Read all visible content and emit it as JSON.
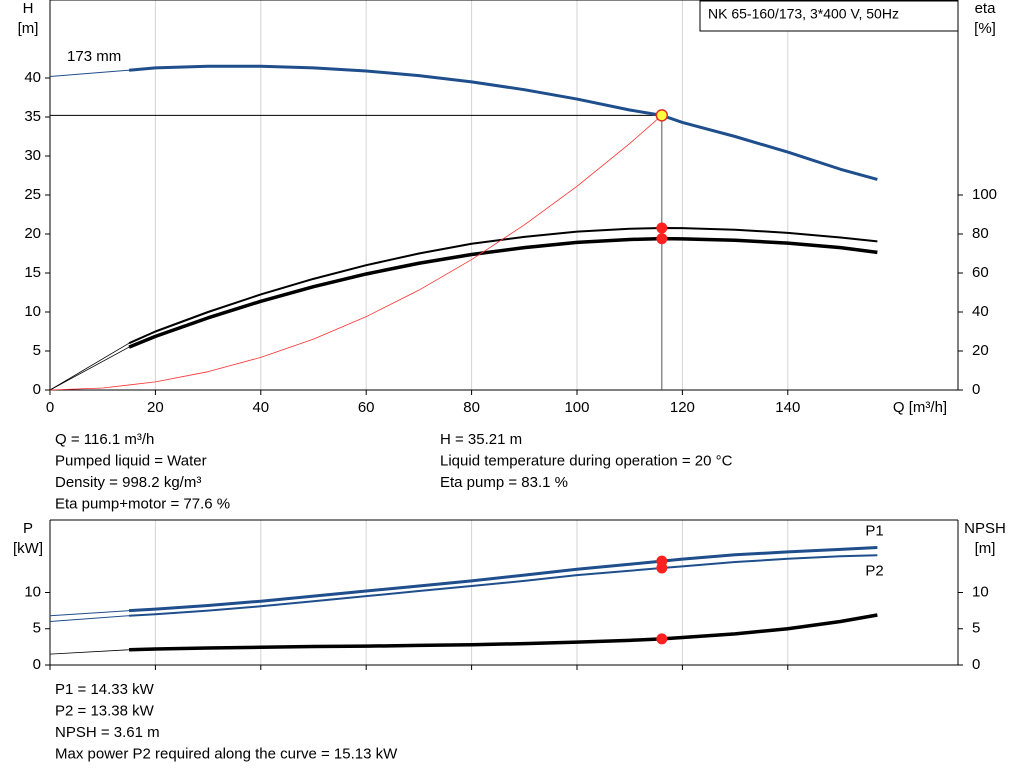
{
  "chart_data": [
    {
      "type": "line",
      "title": "NK 65-160/173, 3*400 V, 50Hz",
      "xlabel": "Q [m³/h]",
      "ylabel": [
        "H",
        "[m]"
      ],
      "y2label": [
        "eta",
        "[%]"
      ],
      "xlim": [
        0,
        172.3
      ],
      "xticks": [
        0,
        20,
        40,
        60,
        80,
        100,
        120,
        140
      ],
      "ylim": [
        0,
        50
      ],
      "yticks": [
        0,
        5,
        10,
        15,
        20,
        25,
        30,
        35,
        40
      ],
      "y2lim": [
        0,
        200
      ],
      "y2ticks": [
        0,
        20,
        40,
        60,
        80,
        100
      ],
      "grid": "x",
      "series": [
        {
          "name": "173 mm",
          "color": "#1f4e8c",
          "width": 3,
          "x": [
            15,
            20,
            30,
            40,
            50,
            60,
            70,
            80,
            90,
            100,
            110,
            116.1,
            120,
            130,
            140,
            150,
            157
          ],
          "values": [
            41.0,
            41.3,
            41.5,
            41.5,
            41.3,
            40.9,
            40.3,
            39.5,
            38.5,
            37.3,
            35.9,
            35.21,
            34.3,
            32.5,
            30.5,
            28.3,
            27.0
          ]
        },
        {
          "color": "#1f4e8c",
          "width": 1,
          "x": [
            0,
            15
          ],
          "values": [
            40.2,
            41.0
          ]
        },
        {
          "color": "#000000",
          "width": 2,
          "axis": "y2",
          "x": [
            15,
            20,
            30,
            40,
            50,
            60,
            70,
            80,
            90,
            100,
            110,
            116.1,
            120,
            130,
            140,
            150,
            157
          ],
          "values": [
            24,
            30,
            40,
            49,
            57,
            64,
            70,
            75,
            78.5,
            81.2,
            82.7,
            83.1,
            83.0,
            82.2,
            80.6,
            78.2,
            76.2
          ]
        },
        {
          "color": "#000000",
          "width": 3.5,
          "axis": "y2",
          "x": [
            15,
            20,
            30,
            40,
            50,
            60,
            70,
            80,
            90,
            100,
            110,
            116.1,
            120,
            130,
            140,
            150,
            157
          ],
          "values": [
            22,
            27.5,
            37,
            45.5,
            53,
            59.5,
            65,
            69.5,
            73,
            75.7,
            77.2,
            77.6,
            77.5,
            76.8,
            75.3,
            73,
            70.6
          ]
        },
        {
          "color": "#000000",
          "width": 0.8,
          "axis": "y2",
          "x": [
            0,
            15
          ],
          "values": [
            0,
            24
          ]
        },
        {
          "color": "#000000",
          "width": 0.8,
          "axis": "y2",
          "x": [
            0,
            15
          ],
          "values": [
            0,
            22
          ]
        },
        {
          "color": "#ff3030",
          "width": 0.8,
          "x": [
            0,
            10,
            20,
            30,
            40,
            50,
            60,
            70,
            80,
            90,
            100,
            110,
            116.1
          ],
          "values": [
            0,
            0.26,
            1.04,
            2.35,
            4.18,
            6.53,
            9.4,
            12.8,
            16.72,
            21.16,
            26.12,
            31.6,
            35.21
          ]
        }
      ],
      "points": [
        {
          "x": 116.1,
          "y": 35.21,
          "color": "#ffff40",
          "duty": true
        },
        {
          "x": 116.1,
          "y": 83.1,
          "color": "#ff2020",
          "axis": "y2"
        },
        {
          "x": 116.1,
          "y": 77.6,
          "color": "#ff2020",
          "axis": "y2"
        }
      ],
      "readouts": [
        [
          "Q = 116.1 m³/h",
          "Pumped liquid = Water",
          "Density = 998.2 kg/m³",
          "Eta pump+motor = 77.6 %"
        ],
        [
          "H = 35.21 m",
          "Liquid temperature during operation = 20 °C",
          "Eta pump = 83.1 %"
        ]
      ]
    },
    {
      "type": "line",
      "ylabel": [
        "P",
        "[kW]"
      ],
      "y2label": [
        "NPSH",
        "[m]"
      ],
      "xlim": [
        0,
        172.3
      ],
      "xticks": [
        0,
        20,
        40,
        60,
        80,
        100,
        120,
        140
      ],
      "xtick_labels": false,
      "ylim": [
        0,
        20
      ],
      "yticks": [
        0,
        5,
        10
      ],
      "y2lim": [
        0,
        20
      ],
      "y2ticks": [
        0,
        5,
        10
      ],
      "grid": "x",
      "series": [
        {
          "name": "P1",
          "color": "#1f4e8c",
          "width": 3,
          "x": [
            15,
            20,
            30,
            40,
            50,
            60,
            70,
            80,
            90,
            100,
            110,
            116.1,
            120,
            130,
            140,
            150,
            157
          ],
          "values": [
            7.5,
            7.7,
            8.2,
            8.8,
            9.5,
            10.2,
            10.9,
            11.6,
            12.4,
            13.2,
            13.9,
            14.33,
            14.6,
            15.2,
            15.6,
            15.95,
            16.2
          ]
        },
        {
          "color": "#1f4e8c",
          "width": 1,
          "x": [
            0,
            15
          ],
          "values": [
            6.8,
            7.5
          ]
        },
        {
          "name": "P2",
          "color": "#1f4e8c",
          "width": 2,
          "x": [
            15,
            20,
            30,
            40,
            50,
            60,
            70,
            80,
            90,
            100,
            110,
            116.1,
            120,
            130,
            140,
            150,
            157
          ],
          "values": [
            6.8,
            7.0,
            7.5,
            8.1,
            8.8,
            9.5,
            10.2,
            10.9,
            11.6,
            12.4,
            13.0,
            13.38,
            13.6,
            14.2,
            14.65,
            15.0,
            15.13
          ]
        },
        {
          "color": "#1f4e8c",
          "width": 1,
          "x": [
            0,
            15
          ],
          "values": [
            6.0,
            6.8
          ]
        },
        {
          "color": "#000000",
          "width": 3.5,
          "axis": "y2",
          "x": [
            15,
            20,
            30,
            40,
            50,
            60,
            70,
            80,
            90,
            100,
            110,
            116.1,
            120,
            130,
            140,
            150,
            157
          ],
          "values": [
            2.1,
            2.2,
            2.35,
            2.45,
            2.55,
            2.6,
            2.7,
            2.8,
            2.95,
            3.15,
            3.4,
            3.61,
            3.8,
            4.3,
            5.0,
            6.0,
            6.9
          ]
        },
        {
          "color": "#000000",
          "width": 0.8,
          "axis": "y2",
          "x": [
            0,
            15
          ],
          "values": [
            1.5,
            2.1
          ]
        }
      ],
      "points": [
        {
          "x": 116.1,
          "y": 14.33,
          "color": "#ff2020"
        },
        {
          "x": 116.1,
          "y": 13.38,
          "color": "#ff2020"
        },
        {
          "x": 116.1,
          "y": 3.61,
          "color": "#ff2020",
          "axis": "y2"
        }
      ],
      "readouts": [
        [
          "P1 = 14.33 kW",
          "P2 = 13.38 kW",
          "NPSH = 3.61 m",
          "Max power P2 required along the curve = 15.13 kW"
        ]
      ]
    }
  ]
}
